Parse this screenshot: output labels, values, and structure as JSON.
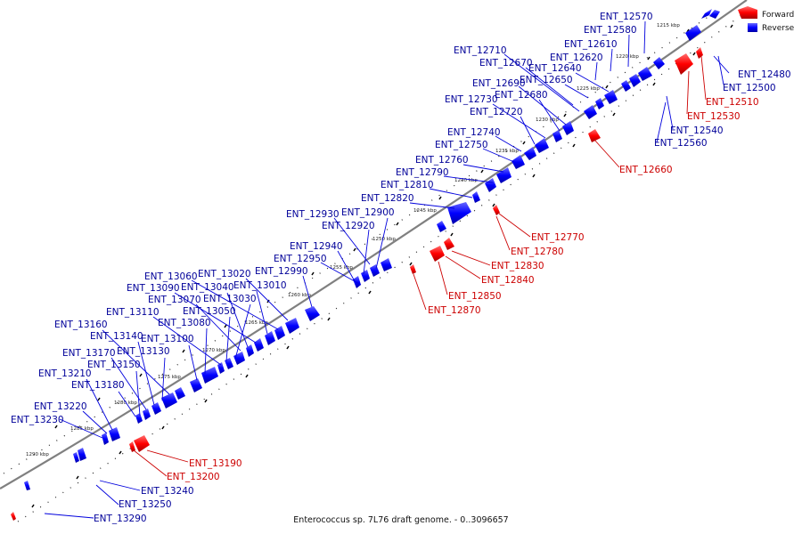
{
  "caption": "Enterococcus sp. 7L76 draft genome. - 0..3096657",
  "legend": [
    {
      "label": "Forward",
      "color": "#ff0000"
    },
    {
      "label": "Reverse",
      "color": "#0000ff"
    }
  ],
  "colors": {
    "forward": "#ff0000",
    "reverse": "#0000ff",
    "backbone": "#808080",
    "forward_label": "#cc0000",
    "reverse_label": "#000099"
  },
  "ticks": [
    {
      "text": "1215 kbp",
      "kbp": 1215
    },
    {
      "text": "1220 kbp",
      "kbp": 1220
    },
    {
      "text": "1225 kbp",
      "kbp": 1225
    },
    {
      "text": "1230 kbp",
      "kbp": 1230
    },
    {
      "text": "1235 kbp",
      "kbp": 1235
    },
    {
      "text": "1240 kbp",
      "kbp": 1240
    },
    {
      "text": "1245 kbp",
      "kbp": 1245
    },
    {
      "text": "1250 kbp",
      "kbp": 1250
    },
    {
      "text": "1255 kbp",
      "kbp": 1255
    },
    {
      "text": "1260 kbp",
      "kbp": 1260
    },
    {
      "text": "1265 kbp",
      "kbp": 1265
    },
    {
      "text": "1270 kbp",
      "kbp": 1270
    },
    {
      "text": "1275 kbp",
      "kbp": 1275
    },
    {
      "text": "1280 kbp",
      "kbp": 1280
    },
    {
      "text": "1285 kbp",
      "kbp": 1285
    },
    {
      "text": "1290 kbp",
      "kbp": 1290
    }
  ],
  "genes_reverse": [
    "ENT_12570",
    "ENT_12580",
    "ENT_12610",
    "ENT_12620",
    "ENT_12640",
    "ENT_12650",
    "ENT_12670",
    "ENT_12710",
    "ENT_12690",
    "ENT_12680",
    "ENT_12730",
    "ENT_12720",
    "ENT_12740",
    "ENT_12750",
    "ENT_12760",
    "ENT_12790",
    "ENT_12810",
    "ENT_12820",
    "ENT_12930",
    "ENT_12900",
    "ENT_12920",
    "ENT_12940",
    "ENT_12950",
    "ENT_12990",
    "ENT_13020",
    "ENT_13060",
    "ENT_13010",
    "ENT_13090",
    "ENT_13040",
    "ENT_13070",
    "ENT_13030",
    "ENT_13110",
    "ENT_13050",
    "ENT_13080",
    "ENT_13160",
    "ENT_13140",
    "ENT_13100",
    "ENT_13170",
    "ENT_13130",
    "ENT_13150",
    "ENT_13210",
    "ENT_13180",
    "ENT_13220",
    "ENT_13230",
    "ENT_12480",
    "ENT_12500",
    "ENT_12540",
    "ENT_12560",
    "ENT_13240",
    "ENT_13250",
    "ENT_13290"
  ],
  "genes_forward": [
    "ENT_12510",
    "ENT_12530",
    "ENT_12660",
    "ENT_12770",
    "ENT_12780",
    "ENT_12830",
    "ENT_12840",
    "ENT_12850",
    "ENT_12870",
    "ENT_13190",
    "ENT_13200"
  ]
}
